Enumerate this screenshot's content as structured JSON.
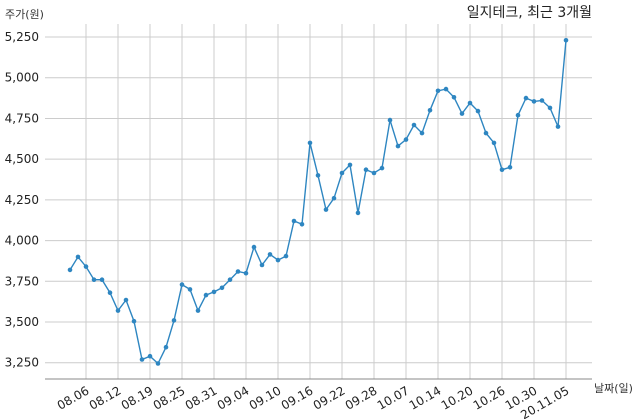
{
  "chart_data": {
    "type": "line",
    "title": "일지테크, 최근 3개월",
    "ylabel": "주가(원)",
    "xlabel": "날짜(일)",
    "ylim": [
      3150,
      5330
    ],
    "yticks": [
      3250,
      3500,
      3750,
      4000,
      4250,
      4500,
      4750,
      5000,
      5250
    ],
    "ytick_labels": [
      "3,250",
      "3,500",
      "3,750",
      "4,000",
      "4,250",
      "4,500",
      "4,750",
      "5,000",
      "5,250"
    ],
    "grid": true,
    "legend": "none",
    "line_color": "#2e86c1",
    "xtick_labels": [
      "08.06",
      "08.12",
      "08.19",
      "08.25",
      "08.31",
      "09.04",
      "09.10",
      "09.16",
      "09.22",
      "09.28",
      "10.07",
      "10.14",
      "10.20",
      "10.26",
      "10.30",
      "20.11.05"
    ],
    "xtick_positions": [
      2,
      6,
      10,
      14,
      18,
      22,
      26,
      30,
      34,
      38,
      42,
      46,
      50,
      54,
      58,
      62
    ],
    "x_count": 63,
    "series": [
      {
        "values": [
          3820,
          3900,
          3840,
          3760,
          3760,
          3680,
          3570,
          3635,
          3505,
          3270,
          3290,
          3245,
          3345,
          3510,
          3730,
          3700,
          3570,
          3665,
          3685,
          3710,
          3760,
          3810,
          3800,
          3960,
          3850,
          3915,
          3880,
          3905,
          4120,
          4100,
          4600,
          4400,
          4190,
          4260,
          4415,
          4465,
          4170,
          4435,
          4415,
          4445,
          4740,
          4580,
          4620,
          4710,
          4660,
          4800,
          4920,
          4930,
          4880,
          4780,
          4845,
          4795,
          4660,
          4600,
          4435,
          4450,
          4770,
          4875,
          4855,
          4860,
          4815,
          4700,
          5230
        ]
      }
    ]
  }
}
